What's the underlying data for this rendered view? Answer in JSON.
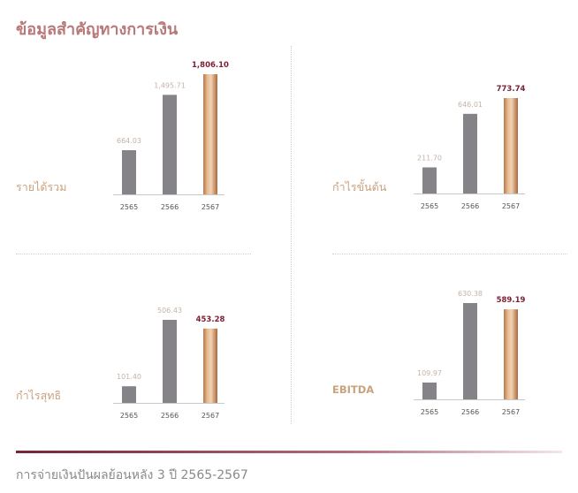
{
  "title": "ข้อมูลสำคัญทางการเงิน",
  "footer": "การจ่ายเงินปันผลย้อนหลัง 3 ปี  2565-2567",
  "colors": {
    "title": "#b9787a",
    "label": "#c9a27e",
    "bar_gray": "#858388",
    "highlight_value": "#7a1f35",
    "value_gray": "#c4b3a6"
  },
  "chart_data": [
    {
      "type": "bar",
      "title": "รายได้รวม",
      "categories": [
        "2565",
        "2566",
        "2567"
      ],
      "values": [
        664.03,
        1495.71,
        1806.1
      ],
      "value_labels": [
        "664.03",
        "1,495.71",
        "1,806.10"
      ],
      "highlight_index": 2
    },
    {
      "type": "bar",
      "title": "กำไรขั้นต้น",
      "categories": [
        "2565",
        "2566",
        "2567"
      ],
      "values": [
        211.7,
        646.01,
        773.74
      ],
      "value_labels": [
        "211.70",
        "646.01",
        "773.74"
      ],
      "highlight_index": 2
    },
    {
      "type": "bar",
      "title": "กำไรสุทธิ",
      "categories": [
        "2565",
        "2566",
        "2567"
      ],
      "values": [
        101.4,
        506.43,
        453.28
      ],
      "value_labels": [
        "101.40",
        "506.43",
        "453.28"
      ],
      "highlight_index": 2
    },
    {
      "type": "bar",
      "title": "EBITDA",
      "categories": [
        "2565",
        "2566",
        "2567"
      ],
      "values": [
        109.97,
        630.38,
        589.19
      ],
      "value_labels": [
        "109.97",
        "630.38",
        "589.19"
      ],
      "highlight_index": 2
    }
  ]
}
